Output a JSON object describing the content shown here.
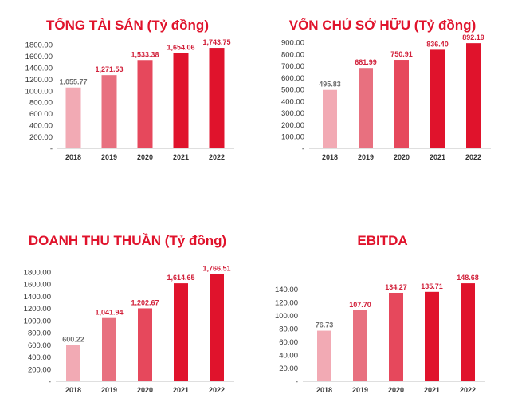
{
  "colors": {
    "title": "#e0132c",
    "bars": [
      "#f2aab4",
      "#e8707f",
      "#e6485c",
      "#e0132c",
      "#e0132c"
    ],
    "labels": [
      "#6e6e6e",
      "#d1203a",
      "#d1203a",
      "#d1203a",
      "#d1203a"
    ],
    "axis_text": "#333333",
    "baseline": "#bfbfbf"
  },
  "chart_data": [
    {
      "type": "bar",
      "title": "TỔNG TÀI SẢN (Tỷ đồng)",
      "categories": [
        "2018",
        "2019",
        "2020",
        "2021",
        "2022"
      ],
      "values": [
        1055.77,
        1271.53,
        1533.38,
        1654.06,
        1743.75
      ],
      "value_labels": [
        "1,055.77",
        "1,271.53",
        "1,533.38",
        "1,654.06",
        "1,743.75"
      ],
      "yticks": [
        0,
        200,
        400,
        600,
        800,
        1000,
        1200,
        1400,
        1600,
        1800
      ],
      "ytick_labels": [
        "-",
        "200.00",
        "400.00",
        "600.00",
        "800.00",
        "1000.00",
        "1200.00",
        "1400.00",
        "1600.00",
        "1800.00"
      ],
      "ylim": [
        0,
        1800
      ],
      "grid": false,
      "legend": "none"
    },
    {
      "type": "bar",
      "title": "VỐN CHỦ SỞ HỮU (Tỷ đồng)",
      "categories": [
        "2018",
        "2019",
        "2020",
        "2021",
        "2022"
      ],
      "values": [
        495.83,
        681.99,
        750.91,
        836.4,
        892.19
      ],
      "value_labels": [
        "495.83",
        "681.99",
        "750.91",
        "836.40",
        "892.19"
      ],
      "yticks": [
        0,
        100,
        200,
        300,
        400,
        500,
        600,
        700,
        800,
        900
      ],
      "ytick_labels": [
        "-",
        "100.00",
        "200.00",
        "300.00",
        "400.00",
        "500.00",
        "600.00",
        "700.00",
        "800.00",
        "900.00"
      ],
      "ylim": [
        0,
        900
      ],
      "grid": false,
      "legend": "none"
    },
    {
      "type": "bar",
      "title": "DOANH THU THUẦN (Tỷ đồng)",
      "categories": [
        "2018",
        "2019",
        "2020",
        "2021",
        "2022"
      ],
      "values": [
        600.22,
        1041.94,
        1202.67,
        1614.65,
        1766.51
      ],
      "value_labels": [
        "600.22",
        "1,041.94",
        "1,202.67",
        "1,614.65",
        "1,766.51"
      ],
      "yticks": [
        0,
        200,
        400,
        600,
        800,
        1000,
        1200,
        1400,
        1600,
        1800
      ],
      "ytick_labels": [
        "-",
        "200.00",
        "400.00",
        "600.00",
        "800.00",
        "1000.00",
        "1200.00",
        "1400.00",
        "1600.00",
        "1800.00"
      ],
      "ylim": [
        0,
        1800
      ],
      "grid": false,
      "legend": "none"
    },
    {
      "type": "bar",
      "title": "EBITDA",
      "categories": [
        "2018",
        "2019",
        "2020",
        "2021",
        "2022"
      ],
      "values": [
        76.73,
        107.7,
        134.27,
        135.71,
        148.68
      ],
      "value_labels": [
        "76.73",
        "107.70",
        "134.27",
        "135.71",
        "148.68"
      ],
      "yticks": [
        0,
        20,
        40,
        60,
        80,
        100,
        120,
        140
      ],
      "ytick_labels": [
        "-",
        "20.00",
        "40.00",
        "60.00",
        "80.00",
        "100.00",
        "120.00",
        "140.00"
      ],
      "ylim": [
        0,
        150
      ],
      "grid": false,
      "legend": "none"
    }
  ]
}
